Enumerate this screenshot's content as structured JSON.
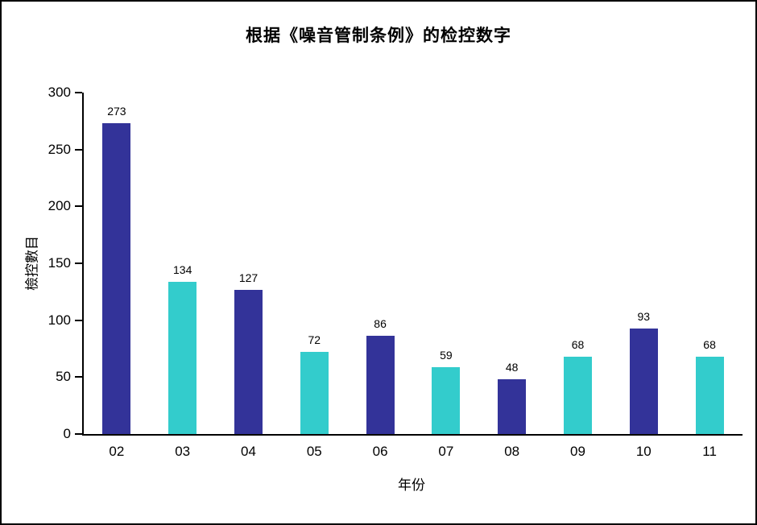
{
  "frame": {
    "background": "#ffffff",
    "border_color": "#000000"
  },
  "chart_data": {
    "type": "bar",
    "title": "根据《噪音管制条例》的检控数字",
    "xlabel": "年份",
    "ylabel": "檢控數目",
    "categories": [
      "02",
      "03",
      "04",
      "05",
      "06",
      "07",
      "08",
      "09",
      "10",
      "11"
    ],
    "values": [
      273,
      134,
      127,
      72,
      86,
      59,
      48,
      68,
      93,
      68
    ],
    "ylim": [
      0,
      300
    ],
    "ytick_step": 50,
    "ytick_labels": [
      "0",
      "50",
      "100",
      "150",
      "200",
      "250",
      "300"
    ],
    "grid": false,
    "legend": "none",
    "value_labels_shown": true,
    "bar_colors_alternating": [
      "#333399",
      "#33CCCC"
    ],
    "axis_color": "#000000",
    "text_color": "#000000"
  }
}
